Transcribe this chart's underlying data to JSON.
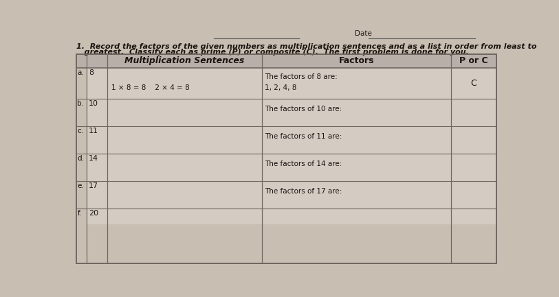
{
  "title_line1": "1.  Record the factors of the given numbers as multiplication sentences and as a list in order from least to",
  "title_line2": "   greatest.  Classify each as prime (P) or composite (C).  The first problem is done for you.",
  "header_col1": "Multiplication Sentences",
  "header_col2": "Factors",
  "header_col3": "P or C",
  "rows": [
    {
      "label": "a.",
      "number": "8",
      "mult_line1": "",
      "mult_line2": "1 × 8 = 8    2 × 4 = 8",
      "factors_line1": "The factors of 8 are:",
      "factors_line2": "1, 2, 4, 8",
      "porc": "C"
    },
    {
      "label": "b.",
      "number": "10",
      "mult_line1": "",
      "mult_line2": "",
      "factors_line1": "The factors of 10 are:",
      "factors_line2": "",
      "porc": ""
    },
    {
      "label": "c.",
      "number": "11",
      "mult_line1": "",
      "mult_line2": "",
      "factors_line1": "The factors of 11 are:",
      "factors_line2": "",
      "porc": ""
    },
    {
      "label": "d.",
      "number": "14",
      "mult_line1": "",
      "mult_line2": "",
      "factors_line1": "The factors of 14 are:",
      "factors_line2": "",
      "porc": ""
    },
    {
      "label": "e.",
      "number": "17",
      "mult_line1": "",
      "mult_line2": "",
      "factors_line1": "The factors of 17 are:",
      "factors_line2": "",
      "porc": ""
    },
    {
      "label": "f.",
      "number": "20",
      "mult_line1": "",
      "mult_line2": "",
      "factors_line1": "",
      "factors_line2": "",
      "porc": ""
    }
  ],
  "bg_paper": "#c8bfb2",
  "cell_color": "#d4ccc3",
  "header_color": "#b8b0a8",
  "border_color": "#706860",
  "text_color": "#1a1410",
  "title_color": "#1a1410"
}
